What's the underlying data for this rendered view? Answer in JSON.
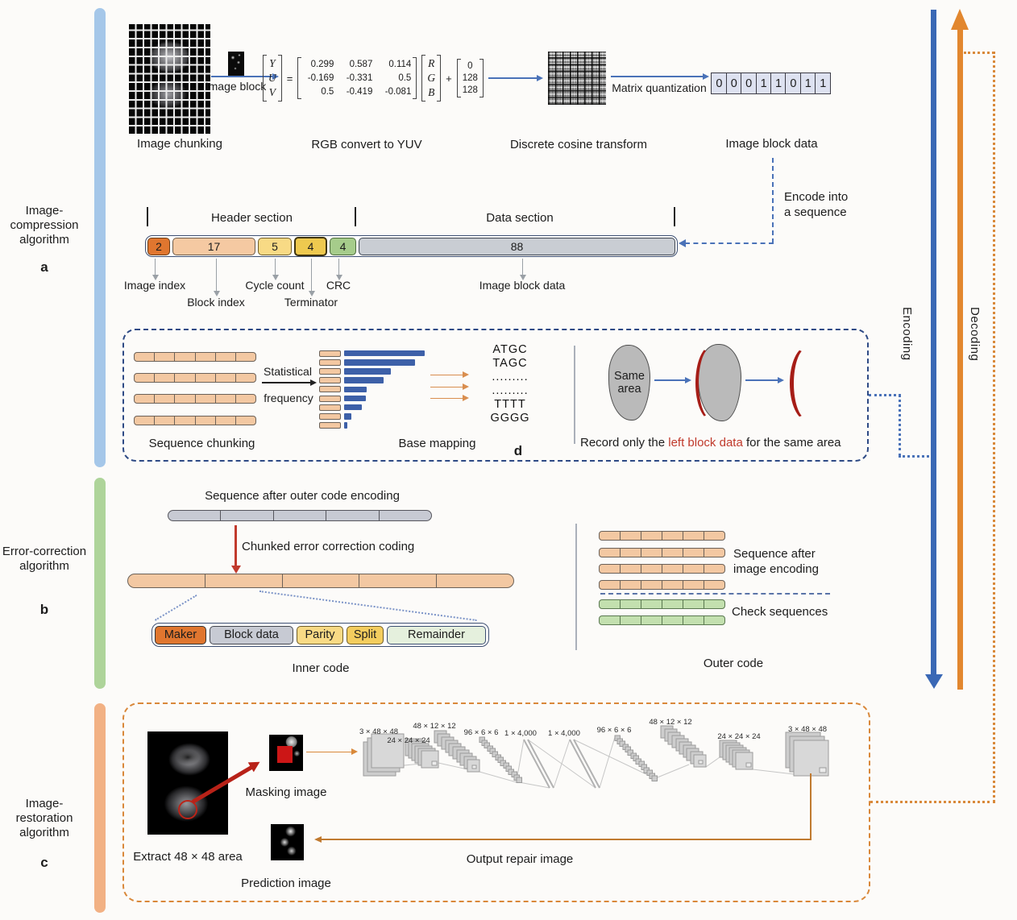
{
  "colors": {
    "encoding_blue": "#3a68b5",
    "decoding_orange": "#e2872f",
    "dashed_navy": "#2e4a85",
    "box_orange": "#d9883a",
    "highlight_red": "#c0392b",
    "sidebar_blue": "#a5c7e9",
    "sidebar_green": "#aed49a",
    "sidebar_orange": "#f2b184"
  },
  "sidebar": {
    "a": {
      "label": "Image-compression algorithm",
      "letter": "a"
    },
    "b": {
      "label": "Error-correction algorithm",
      "letter": "b"
    },
    "c": {
      "label": "Image-restoration algorithm",
      "letter": "c"
    }
  },
  "flow": {
    "encoding": "Encoding",
    "decoding": "Decoding"
  },
  "compression": {
    "image_chunking_label": "Image chunking",
    "image_block_label": "Image block",
    "rgb_to_yuv_label": "RGB convert to YUV",
    "dct_label": "Discrete cosine transform",
    "matrix_quantization_label": "Matrix quantization",
    "image_block_data_label": "Image block data",
    "encode_line1": "Encode into",
    "encode_line2": "a sequence",
    "equals": "=",
    "plus": "+",
    "yuv": [
      "Y",
      "U",
      "V"
    ],
    "rgb": [
      "R",
      "G",
      "B"
    ],
    "matrix": [
      [
        "0.299",
        "0.587",
        "0.114"
      ],
      [
        "-0.169",
        "-0.331",
        "0.5"
      ],
      [
        "0.5",
        "-0.419",
        "-0.081"
      ]
    ],
    "offset": [
      "0",
      "128",
      "128"
    ],
    "bits": [
      "0",
      "0",
      "0",
      "1",
      "1",
      "0",
      "1",
      "1"
    ]
  },
  "sequence": {
    "header_section": "Header section",
    "data_section": "Data section",
    "segments": [
      {
        "value": "2",
        "label": "Image index"
      },
      {
        "value": "17",
        "label": "Block index"
      },
      {
        "value": "5",
        "label": "Cycle count"
      },
      {
        "value": "4",
        "label": "Terminator"
      },
      {
        "value": "4",
        "label": "CRC"
      },
      {
        "value": "88",
        "label": "Image block data"
      }
    ]
  },
  "mapping": {
    "statistical": "Statistical",
    "frequency": "frequency",
    "sequence_chunking": "Sequence chunking",
    "base_mapping": "Base mapping",
    "panel_letter": "d",
    "bases": [
      "ATGC",
      "TAGC",
      ".........",
      ".........",
      "TTTT",
      "GGGG"
    ],
    "same_area": "Same area",
    "record_prefix": "Record only the ",
    "record_highlight": "left block data",
    "record_suffix": " for the same area"
  },
  "error_correction": {
    "outer_encoded_label": "Sequence after outer code encoding",
    "chunked_label": "Chunked error correction coding",
    "inner_cells": [
      "Maker",
      "Block data",
      "Parity",
      "Split",
      "Remainder"
    ],
    "inner_code": "Inner code",
    "seq_after_image_line1": "Sequence after",
    "seq_after_image_line2": "image encoding",
    "check_sequences": "Check sequences",
    "outer_code": "Outer code"
  },
  "restoration": {
    "extract_label": "Extract 48 × 48 area",
    "masking_label": "Masking image",
    "prediction_label": "Prediction image",
    "output_label": "Output repair image",
    "network_dims": [
      "3 × 48 × 48",
      "24 × 24 × 24",
      "48 × 12 × 12",
      "96 × 6 × 6",
      "1 × 4,000",
      "1 × 4,000",
      "96 × 6 × 6",
      "48 × 12 × 12",
      "24 × 24 × 24",
      "3 × 48 × 48"
    ]
  }
}
